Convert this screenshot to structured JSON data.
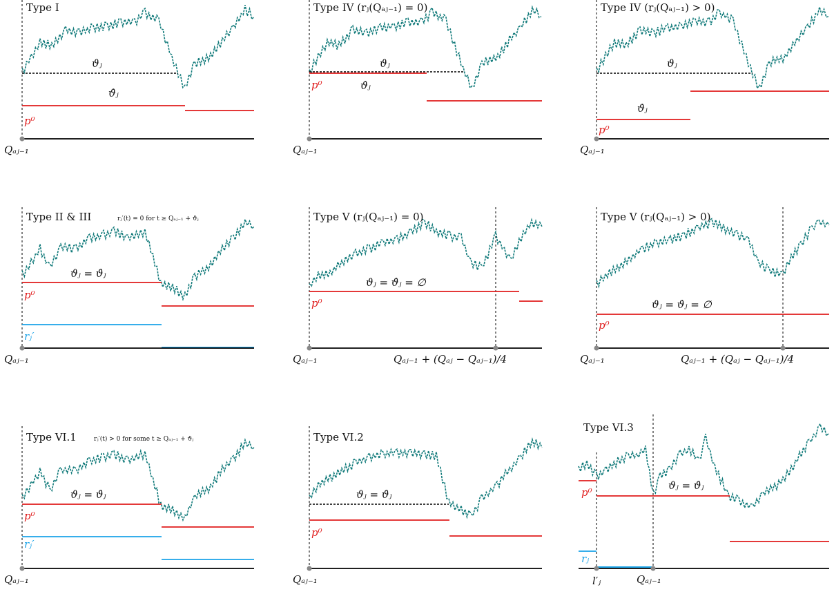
{
  "colors": {
    "price_path": "#117a7a",
    "red_level": "#e01b1b",
    "blue_level": "#1aa3e8",
    "axis": "#000000",
    "point": "#888888"
  },
  "panels": [
    {
      "title": "Type I",
      "labels": {
        "theta": "ϑⱼ",
        "theta_dot": "ϑ̇ⱼ",
        "p0": "p⁰",
        "q": "Qₐⱼ₋₁"
      }
    },
    {
      "title": "Type IV (rⱼ(Qₐⱼ₋₁) = 0)",
      "labels": {
        "theta": "ϑⱼ",
        "theta_dot": "ϑ̇ⱼ",
        "p0": "p⁰",
        "q": "Qₐⱼ₋₁"
      }
    },
    {
      "title": "Type IV (rⱼ(Qₐⱼ₋₁) > 0)",
      "labels": {
        "theta": "ϑⱼ",
        "theta_dot": "ϑ̇ⱼ",
        "p0": "p⁰",
        "q": "Qₐⱼ₋₁"
      }
    },
    {
      "title": "Type II & III",
      "note": "rⱼ′(t) = 0 for t ≥ Qₐⱼ₋₁ + ϑⱼ",
      "labels": {
        "theta": "ϑⱼ = ϑ̇ⱼ",
        "p0": "p⁰",
        "r": "rⱼ′",
        "q": "Qₐⱼ₋₁"
      }
    },
    {
      "title": "Type V (rⱼ(Qₐⱼ₋₁) = 0)",
      "labels": {
        "theta": "ϑⱼ = ϑ̇ⱼ = ∅",
        "p0": "p⁰",
        "q": "Qₐⱼ₋₁",
        "q2": "Qₐⱼ₋₁ + (Qₐⱼ − Qₐⱼ₋₁)/4"
      }
    },
    {
      "title": "Type V (rⱼ(Qₐⱼ₋₁) > 0)",
      "labels": {
        "theta": "ϑⱼ = ϑ̇ⱼ = ∅",
        "p0": "p⁰",
        "q": "Qₐⱼ₋₁",
        "q2": "Qₐⱼ₋₁ + (Qₐⱼ − Qₐⱼ₋₁)/4"
      }
    },
    {
      "title": "Type VI.1",
      "note": "rⱼ′(t) > 0 for some t ≥ Qₐⱼ₋₁ + ϑⱼ",
      "labels": {
        "theta": "ϑⱼ = ϑ̇ⱼ",
        "p0": "p⁰",
        "r": "rⱼ′",
        "q": "Qₐⱼ₋₁"
      }
    },
    {
      "title": "Type VI.2",
      "labels": {
        "theta": "ϑⱼ = ϑ̇ⱼ",
        "p0": "p⁰",
        "q": "Qₐⱼ₋₁"
      }
    },
    {
      "title": "Type VI.3",
      "labels": {
        "theta": "ϑⱼ = ϑ̇ⱼ",
        "p0": "p⁰",
        "r": "rⱼ",
        "l": "l′ⱼ",
        "q": "Qₐⱼ₋₁"
      }
    }
  ]
}
